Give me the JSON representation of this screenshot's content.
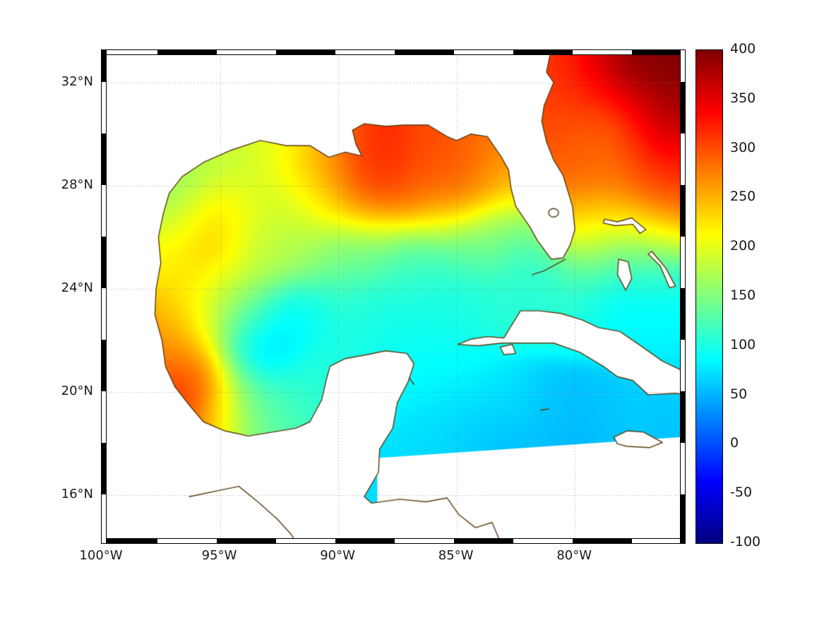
{
  "figure": {
    "background": "#ffffff",
    "coast_color": "#5a3a10",
    "grid_color": "#787878"
  },
  "axes": {
    "lon_range": [
      -100.0,
      -75.35
    ],
    "lat_range": [
      14.15,
      33.25
    ],
    "lon_ticks": [
      {
        "lon": -100,
        "label": "100°W"
      },
      {
        "lon": -95,
        "label": "95°W"
      },
      {
        "lon": -90,
        "label": "90°W"
      },
      {
        "lon": -85,
        "label": "85°W"
      },
      {
        "lon": -80,
        "label": "80°W"
      }
    ],
    "lat_ticks": [
      {
        "lat": 32,
        "label": "32°N"
      },
      {
        "lat": 28,
        "label": "28°N"
      },
      {
        "lat": 24,
        "label": "24°N"
      },
      {
        "lat": 20,
        "label": "20°N"
      },
      {
        "lat": 16,
        "label": "16°N"
      }
    ]
  },
  "colorbar": {
    "min": -100,
    "max": 400,
    "tick_values": [
      400,
      350,
      300,
      250,
      200,
      150,
      100,
      50,
      0,
      -50,
      -100
    ],
    "tick_labels": [
      "400",
      "350",
      "300",
      "250",
      "200",
      "150",
      "100",
      "50",
      "0",
      "-50",
      "-100"
    ],
    "gradient_stops": [
      "#000080",
      "#0000ff",
      "#0080ff",
      "#00ffff",
      "#80ff80",
      "#ffff00",
      "#ff8000",
      "#ff0000",
      "#800000"
    ]
  },
  "chart_data": {
    "type": "heatmap",
    "region": "Gulf of Mexico, western North Atlantic and northwestern Caribbean",
    "value_range": [
      -100,
      400
    ],
    "points": [
      [
        -75.8,
        32.9,
        400
      ],
      [
        -77.6,
        32.6,
        400
      ],
      [
        -79.0,
        32.2,
        345
      ],
      [
        -80.6,
        31.9,
        310
      ],
      [
        -75.6,
        31.2,
        395
      ],
      [
        -77.2,
        31.0,
        370
      ],
      [
        -78.8,
        30.6,
        320
      ],
      [
        -80.3,
        30.2,
        300
      ],
      [
        -76.2,
        30.0,
        360
      ],
      [
        -77.6,
        29.8,
        330
      ],
      [
        -78.5,
        29.9,
        250
      ],
      [
        -79.6,
        29.3,
        295
      ],
      [
        -75.7,
        28.8,
        320
      ],
      [
        -77.9,
        28.6,
        280
      ],
      [
        -79.9,
        28.2,
        285
      ],
      [
        -76.6,
        27.6,
        305
      ],
      [
        -75.6,
        26.9,
        300
      ],
      [
        -78.7,
        26.9,
        250
      ],
      [
        -79.9,
        26.5,
        255
      ],
      [
        -77.2,
        26.2,
        210
      ],
      [
        -76.0,
        25.8,
        170
      ],
      [
        -79.4,
        25.9,
        190
      ],
      [
        -78.4,
        25.2,
        110
      ],
      [
        -76.8,
        24.8,
        100
      ],
      [
        -75.7,
        24.2,
        90
      ],
      [
        -79.9,
        24.9,
        130
      ],
      [
        -80.9,
        24.3,
        115
      ],
      [
        -82.0,
        23.9,
        100
      ],
      [
        -89.1,
        28.9,
        315
      ],
      [
        -88.0,
        28.3,
        330
      ],
      [
        -86.4,
        28.5,
        300
      ],
      [
        -85.1,
        28.0,
        305
      ],
      [
        -84.1,
        28.9,
        295
      ],
      [
        -83.4,
        28.2,
        240
      ],
      [
        -90.4,
        28.9,
        265
      ],
      [
        -91.6,
        29.2,
        225
      ],
      [
        -93.1,
        29.2,
        195
      ],
      [
        -94.6,
        28.9,
        185
      ],
      [
        -96.1,
        28.2,
        165
      ],
      [
        -97.0,
        27.4,
        150
      ],
      [
        -87.0,
        27.4,
        285
      ],
      [
        -85.6,
        26.9,
        235
      ],
      [
        -88.6,
        27.2,
        270
      ],
      [
        -90.6,
        27.4,
        225
      ],
      [
        -92.2,
        27.2,
        190
      ],
      [
        -93.9,
        26.9,
        200
      ],
      [
        -95.4,
        26.9,
        245
      ],
      [
        -96.6,
        26.3,
        205
      ],
      [
        -96.8,
        25.1,
        215
      ],
      [
        -95.6,
        25.4,
        250
      ],
      [
        -94.4,
        24.6,
        205
      ],
      [
        -93.1,
        25.4,
        180
      ],
      [
        -91.6,
        25.6,
        170
      ],
      [
        -90.1,
        25.1,
        150
      ],
      [
        -88.7,
        25.6,
        140
      ],
      [
        -87.2,
        25.5,
        125
      ],
      [
        -85.9,
        25.3,
        115
      ],
      [
        -84.6,
        25.6,
        130
      ],
      [
        -83.3,
        26.3,
        170
      ],
      [
        -82.6,
        25.2,
        120
      ],
      [
        -96.4,
        23.6,
        230
      ],
      [
        -97.1,
        22.6,
        255
      ],
      [
        -95.9,
        22.6,
        185
      ],
      [
        -94.9,
        23.4,
        165
      ],
      [
        -93.5,
        23.3,
        120
      ],
      [
        -92.1,
        22.6,
        80
      ],
      [
        -90.9,
        23.1,
        95
      ],
      [
        -89.3,
        23.6,
        110
      ],
      [
        -87.9,
        22.7,
        95
      ],
      [
        -86.6,
        24.1,
        105
      ],
      [
        -85.1,
        23.6,
        100
      ],
      [
        -93.1,
        21.4,
        45
      ],
      [
        -94.2,
        21.9,
        110
      ],
      [
        -96.9,
        21.9,
        290
      ],
      [
        -96.3,
        20.9,
        290
      ],
      [
        -95.9,
        19.9,
        350
      ],
      [
        -95.0,
        19.6,
        200
      ],
      [
        -94.0,
        19.9,
        150
      ],
      [
        -92.9,
        19.6,
        135
      ],
      [
        -91.8,
        20.0,
        115
      ],
      [
        -90.8,
        20.6,
        105
      ],
      [
        -89.8,
        21.1,
        100
      ],
      [
        -88.8,
        22.2,
        100
      ],
      [
        -86.2,
        20.6,
        85
      ],
      [
        -87.3,
        20.9,
        90
      ],
      [
        -85.0,
        21.2,
        90
      ],
      [
        -84.2,
        20.2,
        75
      ],
      [
        -85.9,
        19.0,
        70
      ],
      [
        -84.2,
        18.6,
        65
      ],
      [
        -82.7,
        19.9,
        75
      ],
      [
        -81.3,
        19.5,
        60
      ],
      [
        -82.9,
        18.2,
        55
      ],
      [
        -80.3,
        19.0,
        55
      ],
      [
        -78.9,
        18.9,
        60
      ],
      [
        -77.4,
        19.2,
        65
      ],
      [
        -76.1,
        19.6,
        60
      ],
      [
        -75.3,
        20.0,
        65
      ],
      [
        -79.5,
        18.0,
        50
      ],
      [
        -77.6,
        17.9,
        60
      ],
      [
        -75.6,
        18.6,
        55
      ],
      [
        -75.4,
        21.6,
        85
      ],
      [
        -76.6,
        22.4,
        85
      ],
      [
        -78.0,
        23.3,
        85
      ],
      [
        -79.3,
        23.4,
        95
      ],
      [
        -80.9,
        23.4,
        105
      ],
      [
        -83.0,
        23.3,
        110
      ],
      [
        -84.5,
        22.6,
        100
      ],
      [
        -86.0,
        22.4,
        95
      ]
    ],
    "geography": {
      "mainland_coast": [
        [
          -81.0,
          33.3
        ],
        [
          -81.2,
          32.4
        ],
        [
          -80.9,
          32.0
        ],
        [
          -81.3,
          31.1
        ],
        [
          -81.4,
          30.5
        ],
        [
          -81.2,
          29.7
        ],
        [
          -80.9,
          29.0
        ],
        [
          -80.5,
          28.4
        ],
        [
          -80.1,
          27.2
        ],
        [
          -80.0,
          26.3
        ],
        [
          -80.2,
          25.7
        ],
        [
          -80.5,
          25.2
        ],
        [
          -81.0,
          25.15
        ],
        [
          -81.6,
          25.9
        ],
        [
          -81.9,
          26.4
        ],
        [
          -82.5,
          27.2
        ],
        [
          -82.7,
          27.9
        ],
        [
          -82.8,
          28.6
        ],
        [
          -83.1,
          29.1
        ],
        [
          -83.7,
          29.9
        ],
        [
          -84.4,
          30.0
        ],
        [
          -85.0,
          29.75
        ],
        [
          -85.4,
          29.9
        ],
        [
          -86.2,
          30.35
        ],
        [
          -87.2,
          30.35
        ],
        [
          -88.0,
          30.3
        ],
        [
          -88.9,
          30.4
        ],
        [
          -89.4,
          30.15
        ],
        [
          -89.25,
          29.6
        ],
        [
          -89.0,
          29.15
        ],
        [
          -89.7,
          29.3
        ],
        [
          -90.4,
          29.1
        ],
        [
          -91.2,
          29.55
        ],
        [
          -92.2,
          29.55
        ],
        [
          -93.3,
          29.75
        ],
        [
          -94.6,
          29.35
        ],
        [
          -95.7,
          28.9
        ],
        [
          -96.6,
          28.35
        ],
        [
          -97.15,
          27.7
        ],
        [
          -97.4,
          26.9
        ],
        [
          -97.6,
          26.0
        ],
        [
          -97.5,
          25.0
        ],
        [
          -97.7,
          24.0
        ],
        [
          -97.75,
          23.0
        ],
        [
          -97.45,
          22.0
        ],
        [
          -97.3,
          21.0
        ],
        [
          -96.9,
          20.2
        ],
        [
          -96.3,
          19.5
        ],
        [
          -95.7,
          18.85
        ],
        [
          -94.8,
          18.5
        ],
        [
          -93.8,
          18.3
        ],
        [
          -92.8,
          18.45
        ],
        [
          -91.8,
          18.6
        ],
        [
          -91.2,
          18.85
        ],
        [
          -90.7,
          19.7
        ],
        [
          -90.5,
          20.5
        ],
        [
          -90.35,
          21.0
        ],
        [
          -89.7,
          21.3
        ],
        [
          -88.8,
          21.45
        ],
        [
          -88.0,
          21.6
        ],
        [
          -87.1,
          21.5
        ],
        [
          -86.8,
          21.1
        ],
        [
          -87.05,
          20.4
        ],
        [
          -87.5,
          19.6
        ],
        [
          -87.7,
          18.6
        ],
        [
          -88.25,
          17.8
        ],
        [
          -88.3,
          16.9
        ],
        [
          -88.9,
          15.95
        ],
        [
          -88.6,
          15.7
        ],
        [
          -87.4,
          15.85
        ],
        [
          -86.3,
          15.75
        ],
        [
          -85.4,
          15.9
        ],
        [
          -84.9,
          15.25
        ],
        [
          -84.2,
          14.75
        ],
        [
          -83.5,
          14.95
        ],
        [
          -83.2,
          14.3
        ],
        [
          -83.3,
          13.6
        ]
      ],
      "mainland_closure": [
        [
          -102.0,
          13.0
        ],
        [
          -102.0,
          34.5
        ],
        [
          -80.95,
          34.5
        ]
      ],
      "islands": {
        "cuba": [
          [
            -84.95,
            21.85
          ],
          [
            -84.4,
            22.05
          ],
          [
            -83.7,
            22.15
          ],
          [
            -83.0,
            22.1
          ],
          [
            -82.3,
            23.15
          ],
          [
            -81.5,
            23.15
          ],
          [
            -80.6,
            23.05
          ],
          [
            -79.7,
            22.8
          ],
          [
            -79.0,
            22.5
          ],
          [
            -78.1,
            22.35
          ],
          [
            -77.3,
            21.85
          ],
          [
            -76.3,
            21.2
          ],
          [
            -75.5,
            20.85
          ],
          [
            -74.6,
            20.45
          ],
          [
            -74.15,
            20.1
          ],
          [
            -74.8,
            19.9
          ],
          [
            -75.8,
            19.95
          ],
          [
            -76.9,
            19.9
          ],
          [
            -77.55,
            20.45
          ],
          [
            -78.2,
            20.6
          ],
          [
            -78.8,
            21.0
          ],
          [
            -79.8,
            21.55
          ],
          [
            -80.9,
            21.9
          ],
          [
            -82.0,
            21.9
          ],
          [
            -83.1,
            21.9
          ],
          [
            -84.1,
            21.8
          ]
        ],
        "isla_juventud": [
          [
            -83.15,
            21.75
          ],
          [
            -82.65,
            21.85
          ],
          [
            -82.5,
            21.5
          ],
          [
            -83.0,
            21.45
          ]
        ],
        "jamaica": [
          [
            -78.35,
            18.25
          ],
          [
            -77.8,
            18.5
          ],
          [
            -77.1,
            18.45
          ],
          [
            -76.3,
            18.05
          ],
          [
            -76.85,
            17.85
          ],
          [
            -77.8,
            17.9
          ],
          [
            -78.2,
            18.0
          ]
        ],
        "grand_bahama_abaco": [
          [
            -78.75,
            26.7
          ],
          [
            -78.2,
            26.6
          ],
          [
            -77.6,
            26.75
          ],
          [
            -77.0,
            26.3
          ],
          [
            -77.25,
            26.15
          ],
          [
            -77.55,
            26.5
          ],
          [
            -78.3,
            26.45
          ],
          [
            -78.8,
            26.55
          ]
        ],
        "andros": [
          [
            -78.15,
            25.15
          ],
          [
            -77.75,
            25.05
          ],
          [
            -77.6,
            24.4
          ],
          [
            -77.85,
            23.95
          ],
          [
            -78.2,
            24.55
          ]
        ],
        "eleuthera": [
          [
            -76.75,
            25.45
          ],
          [
            -76.15,
            24.8
          ],
          [
            -75.75,
            24.1
          ],
          [
            -76.0,
            24.05
          ],
          [
            -76.4,
            24.9
          ],
          [
            -76.9,
            25.35
          ]
        ]
      },
      "coast_lines": {
        "pacific_coast": [
          [
            -96.3,
            15.95
          ],
          [
            -95.0,
            16.2
          ],
          [
            -94.2,
            16.35
          ],
          [
            -93.4,
            15.75
          ],
          [
            -92.6,
            15.1
          ],
          [
            -92.0,
            14.5
          ],
          [
            -91.6,
            13.9
          ]
        ],
        "florida_keys": [
          [
            -80.4,
            25.15
          ],
          [
            -80.8,
            24.95
          ],
          [
            -81.3,
            24.7
          ],
          [
            -81.8,
            24.55
          ]
        ],
        "cayman": [
          [
            -81.45,
            19.3
          ],
          [
            -81.1,
            19.35
          ]
        ],
        "cozumel": [
          [
            -87.0,
            20.55
          ],
          [
            -86.8,
            20.3
          ]
        ]
      },
      "lake_okeechobee": [
        -80.9,
        26.95
      ],
      "no_data_masks": [
        [
          [
            -88.35,
            17.45
          ],
          [
            -74.8,
            18.3
          ],
          [
            -74.8,
            13.0
          ],
          [
            -88.35,
            13.0
          ]
        ]
      ]
    }
  }
}
